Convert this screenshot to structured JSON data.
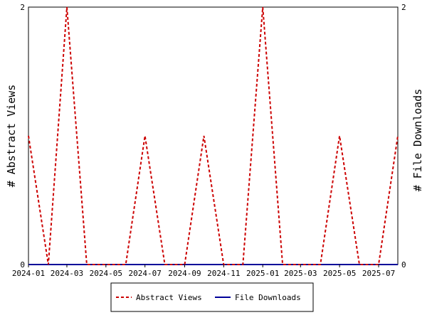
{
  "chart_data": {
    "type": "line",
    "x_ticks": [
      "2024-01",
      "2024-03",
      "2024-05",
      "2024-07",
      "2024-09",
      "2024-11",
      "2025-01",
      "2025-03",
      "2025-05",
      "2025-07"
    ],
    "x_range": [
      "2024-01-01",
      "2025-07-31"
    ],
    "ylabel_left": "# Abstract Views",
    "ylabel_right": "# File Downloads",
    "y_ticks_left": [
      "0",
      "2"
    ],
    "y_ticks_right": [
      "0",
      "2"
    ],
    "ylim": [
      0,
      2
    ],
    "grid": false,
    "legend_position": "bottom-center",
    "series": [
      {
        "name": "Abstract Views",
        "color": "#cc0000",
        "style": "dashed",
        "x": [
          "2024-01-01",
          "2024-02-01",
          "2024-03-01",
          "2024-04-01",
          "2024-05-01",
          "2024-06-01",
          "2024-07-01",
          "2024-08-01",
          "2024-09-01",
          "2024-10-01",
          "2024-11-01",
          "2024-12-01",
          "2025-01-01",
          "2025-02-01",
          "2025-03-01",
          "2025-04-01",
          "2025-05-01",
          "2025-06-01",
          "2025-07-01",
          "2025-07-31"
        ],
        "values": [
          1,
          0,
          2,
          0,
          0,
          0,
          1,
          0,
          0,
          1,
          0,
          0,
          2,
          0,
          0,
          0,
          1,
          0,
          0,
          1
        ]
      },
      {
        "name": "File Downloads",
        "color": "#000099",
        "style": "solid",
        "x": [
          "2024-01-01",
          "2025-07-31"
        ],
        "values": [
          0,
          0
        ]
      }
    ]
  }
}
